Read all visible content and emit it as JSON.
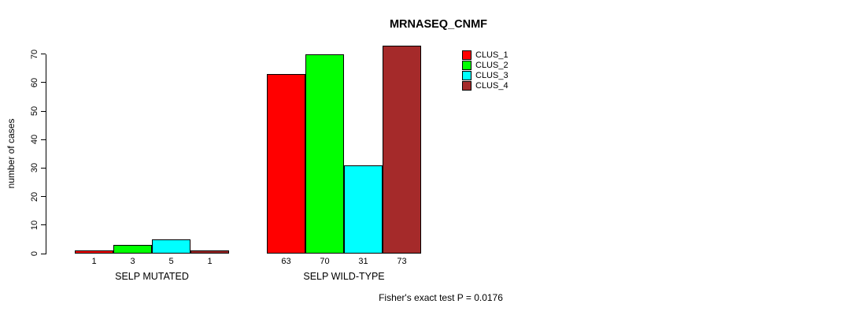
{
  "chart_data": {
    "type": "bar",
    "title": "MRNASEQ_CNMF",
    "ylabel": "number of cases",
    "xlabel": "",
    "ylim": [
      0,
      70
    ],
    "yticks": [
      0,
      10,
      20,
      30,
      40,
      50,
      60,
      70
    ],
    "grid": false,
    "legend_position": "top-right",
    "categories": [
      "SELP MUTATED",
      "SELP WILD-TYPE"
    ],
    "series": [
      {
        "name": "CLUS_1",
        "color": "#ff0000",
        "values": [
          1,
          63
        ]
      },
      {
        "name": "CLUS_2",
        "color": "#00ff00",
        "values": [
          3,
          70
        ]
      },
      {
        "name": "CLUS_3",
        "color": "#00ffff",
        "values": [
          5,
          31
        ]
      },
      {
        "name": "CLUS_4",
        "color": "#a52a2a",
        "values": [
          1,
          73
        ]
      }
    ],
    "bar_value_labels": [
      [
        "1",
        "3",
        "5",
        "1"
      ],
      [
        "63",
        "70",
        "31",
        "73"
      ]
    ],
    "footnote": "Fisher's exact test P = 0.0176"
  }
}
